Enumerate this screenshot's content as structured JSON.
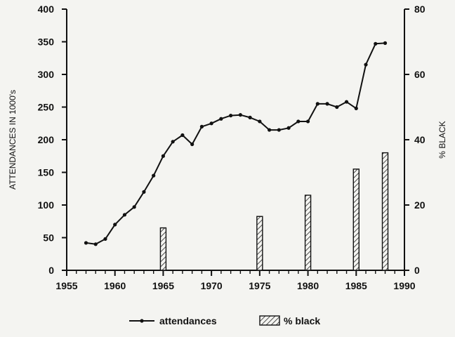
{
  "chart_data": {
    "type": "line+bar",
    "title": "",
    "xlabel": "",
    "ylabel": "ATTENDANCES IN 1000's",
    "y2label": "% BLACK",
    "xlim": [
      1955,
      1990
    ],
    "ylim": [
      0,
      400
    ],
    "y2lim": [
      0,
      80
    ],
    "x_ticks": [
      1955,
      1960,
      1965,
      1970,
      1975,
      1980,
      1985,
      1990
    ],
    "y_ticks": [
      0,
      50,
      100,
      150,
      200,
      250,
      300,
      350,
      400
    ],
    "y2_ticks": [
      0,
      20,
      40,
      60,
      80
    ],
    "grid": false,
    "legend_position": "bottom",
    "series": [
      {
        "name": "attendances",
        "type": "line",
        "axis": "left",
        "x": [
          1957,
          1958,
          1959,
          1960,
          1961,
          1962,
          1963,
          1964,
          1965,
          1966,
          1967,
          1968,
          1969,
          1970,
          1971,
          1972,
          1973,
          1974,
          1975,
          1976,
          1977,
          1978,
          1979,
          1980,
          1981,
          1982,
          1983,
          1984,
          1985,
          1986,
          1987,
          1988
        ],
        "y": [
          42,
          40,
          48,
          70,
          85,
          97,
          120,
          145,
          175,
          197,
          207,
          193,
          220,
          225,
          232,
          237,
          238,
          234,
          228,
          215,
          215,
          218,
          228,
          228,
          255,
          255,
          250,
          258,
          248,
          315,
          347,
          348
        ]
      },
      {
        "name": "% black",
        "type": "bar",
        "axis": "right",
        "x": [
          1965,
          1975,
          1980,
          1985,
          1988
        ],
        "y": [
          13,
          16.5,
          23,
          31,
          36
        ]
      }
    ]
  }
}
